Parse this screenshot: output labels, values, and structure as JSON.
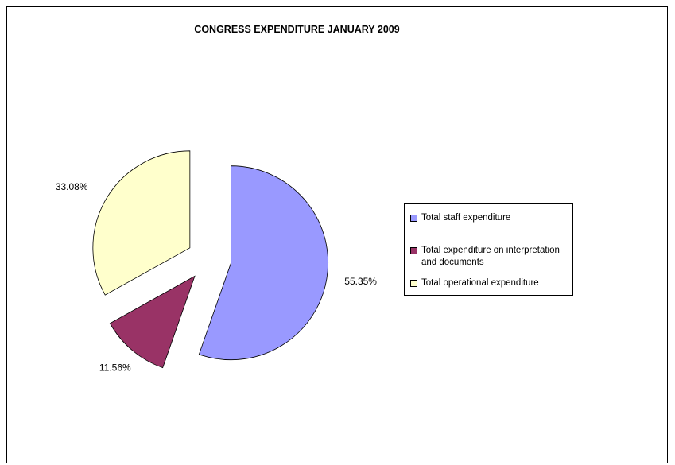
{
  "chart_data": {
    "type": "pie",
    "title": "CONGRESS EXPENDITURE JANUARY 2009",
    "slices": [
      {
        "label": "Total staff expenditure",
        "value": 55.35,
        "value_label": "55.35%",
        "color": "#9999ff"
      },
      {
        "label": "Total expenditure on interpretation and documents",
        "value": 11.56,
        "value_label": "11.56%",
        "color": "#993366"
      },
      {
        "label": "Total operational expenditure",
        "value": 33.08,
        "value_label": "33.08%",
        "color": "#ffffcc"
      }
    ],
    "exploded": true,
    "legend_position": "right"
  }
}
